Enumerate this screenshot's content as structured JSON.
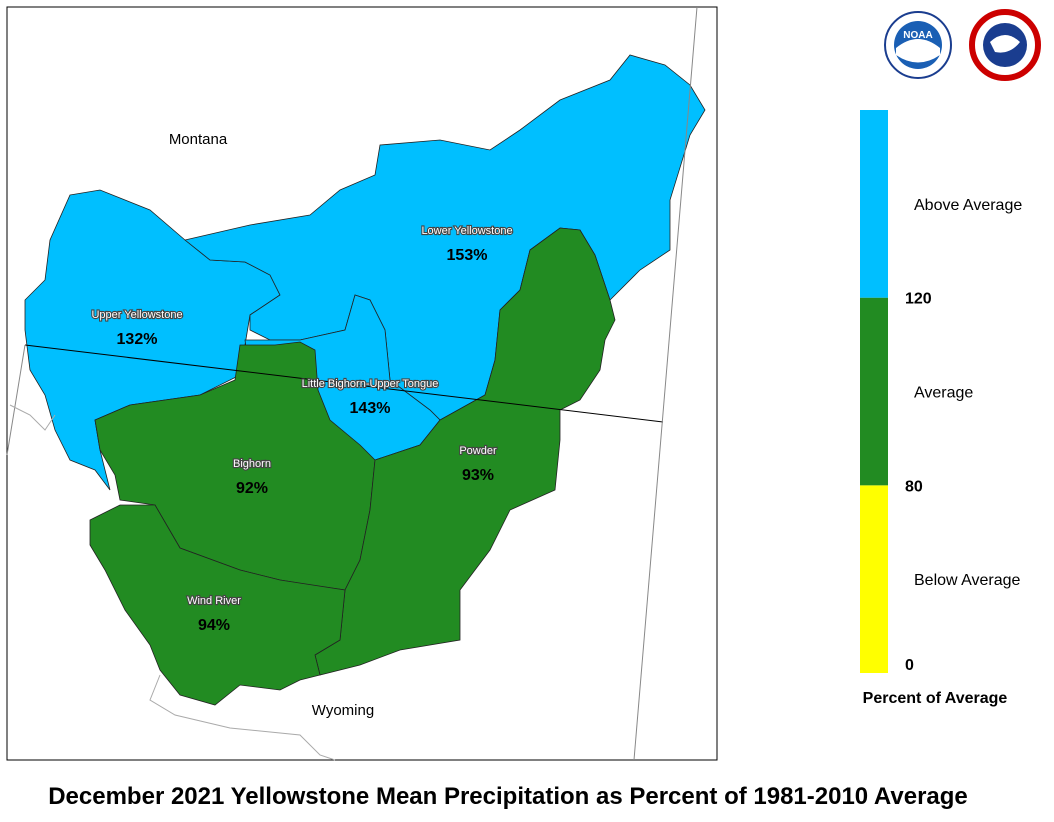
{
  "title": "December 2021 Yellowstone Mean Precipitation as Percent of 1981-2010 Average",
  "states": [
    "Montana",
    "Wyoming"
  ],
  "logos": {
    "noaa": "NOAA"
  },
  "basins": [
    {
      "name": "Upper Yellowstone",
      "value": 132,
      "value_label": "132%"
    },
    {
      "name": "Lower Yellowstone",
      "value": 153,
      "value_label": "153%"
    },
    {
      "name": "Little Bighorn-Upper Tongue",
      "value": 143,
      "value_label": "143%"
    },
    {
      "name": "Bighorn",
      "value": 92,
      "value_label": "92%"
    },
    {
      "name": "Powder",
      "value": 93,
      "value_label": "93%"
    },
    {
      "name": "Wind River",
      "value": 94,
      "value_label": "94%"
    }
  ],
  "legend": {
    "title": "Percent of Average",
    "classes": [
      {
        "label": "Below Average",
        "color": "#ffff00"
      },
      {
        "label": "Average",
        "color": "#228b22"
      },
      {
        "label": "Above Average",
        "color": "#00bfff"
      }
    ],
    "breaks": [
      0,
      80,
      120
    ]
  }
}
